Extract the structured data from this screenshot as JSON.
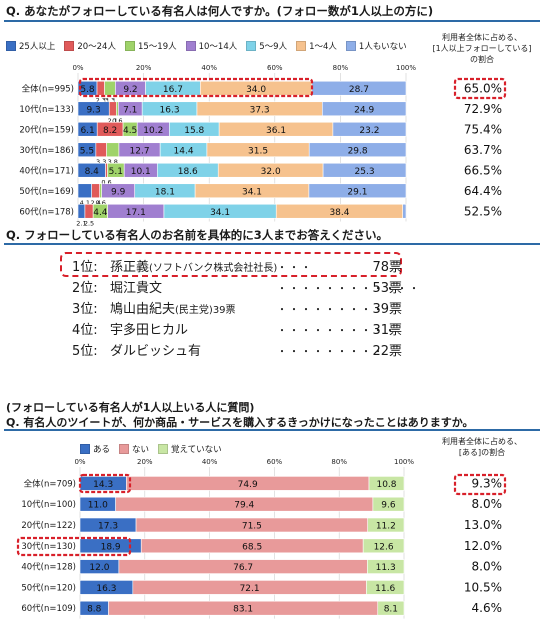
{
  "q1": {
    "title": "Q. あなたがフォローしている有名人は何人ですか。(フォロー数が1人以上の方に)",
    "side_header": [
      "利用者全体に占める、",
      "[1人以上フォローしている]",
      "の割合"
    ]
  },
  "q2": {
    "title": "Q. フォローしている有名人のお名前を具体的に3人までお答えください。",
    "ranking": [
      {
        "rank": "1位:",
        "name": "孫正義",
        "note": "(ソフトバンク株式会社社長)",
        "dots": "・・・",
        "count": "78票"
      },
      {
        "rank": "2位:",
        "name": "堀江貴文",
        "note": "",
        "dots": "・・・・・・・・・・・・",
        "count": "53票"
      },
      {
        "rank": "3位:",
        "name": "鳩山由紀夫",
        "note": "(民主党)39票",
        "dots": "・・・・・・・・・",
        "count": "39票"
      },
      {
        "rank": "4位:",
        "name": "宇多田ヒカル",
        "note": "",
        "dots": "・・・・・・・・・・",
        "count": "31票"
      },
      {
        "rank": "5位:",
        "name": "ダルビッシュ有",
        "note": "",
        "dots": "・・・・・・・・・",
        "count": "22票"
      }
    ]
  },
  "q3": {
    "subtitle": "(フォローしている有名人が1人以上いる人に質問)",
    "title": "Q. 有名人のツイートが、何か商品・サービスを購入するきっかけになったことはありますか。",
    "side_header": [
      "利用者全体に占める、",
      "[ある]の割合"
    ]
  },
  "chart_data": [
    {
      "type": "bar",
      "orientation": "horizontal-stacked-100",
      "categories": [
        "全体(n=995)",
        "10代(n=133)",
        "20代(n=159)",
        "30代(n=186)",
        "40代(n=171)",
        "50代(n=169)",
        "60代(n=178)"
      ],
      "series": [
        {
          "name": "25人以上",
          "color": "#3a6fc4",
          "values": [
            5.8,
            9.3,
            6.1,
            5.5,
            8.4,
            4.1,
            2.1
          ]
        },
        {
          "name": "20～24人",
          "color": "#e05a5a",
          "values": [
            2.3,
            2.1,
            8.2,
            3.3,
            0.6,
            2.4,
            2.5
          ]
        },
        {
          "name": "15～19人",
          "color": "#9fd36a",
          "values": [
            3.3,
            0.6,
            4.5,
            3.8,
            5.1,
            0.6,
            4.4
          ]
        },
        {
          "name": "10～14人",
          "color": "#a07fd0",
          "values": [
            9.2,
            7.1,
            10.2,
            12.7,
            10.1,
            9.9,
            17.1
          ]
        },
        {
          "name": "5～9人",
          "color": "#7fd2e8",
          "values": [
            16.7,
            16.3,
            15.8,
            14.4,
            18.6,
            18.1,
            34.1
          ]
        },
        {
          "name": "1～4人",
          "color": "#f6c28e",
          "values": [
            34.0,
            37.3,
            36.1,
            31.5,
            32.0,
            34.1,
            38.4
          ]
        },
        {
          "name": "1人もいない",
          "color": "#8eaee8",
          "values": [
            28.7,
            24.9,
            23.2,
            29.8,
            25.3,
            29.1,
            1.0
          ]
        }
      ],
      "labels": [
        [
          "5.8",
          "2.3",
          "3.3",
          "9.2",
          "16.7",
          "34.0",
          "28.7"
        ],
        [
          "9.3",
          "2.1",
          "0.6",
          "7.1",
          "16.3",
          "37.3",
          "24.9"
        ],
        [
          "6.1",
          "8.2",
          "4.5",
          "10.2",
          "15.8",
          "36.1",
          "23.2"
        ],
        [
          "5.5",
          "3.3",
          "3.8",
          "12.7",
          "14.4",
          "31.5",
          "29.8"
        ],
        [
          "8.4",
          "0.6",
          "5.1",
          "10.1",
          "18.6",
          "32.0",
          "25.3"
        ],
        [
          "4.1",
          "2.4",
          "0.6",
          "9.9",
          "18.1",
          "34.1",
          "29.1"
        ],
        [
          "2.1",
          "2.5",
          "4.4",
          "17.1",
          "34.1",
          "38.4",
          ""
        ]
      ],
      "xticks": [
        "0%",
        "20%",
        "40%",
        "60%",
        "80%",
        "100%"
      ],
      "side_values": [
        "65.0%",
        "72.9%",
        "75.4%",
        "63.7%",
        "66.5%",
        "64.4%",
        "52.5%"
      ]
    },
    {
      "type": "bar",
      "orientation": "horizontal-stacked-100",
      "categories": [
        "全体(n=709)",
        "10代(n=100)",
        "20代(n=122)",
        "30代(n=130)",
        "40代(n=128)",
        "50代(n=120)",
        "60代(n=109)"
      ],
      "series": [
        {
          "name": "ある",
          "color": "#3a6fc4",
          "values": [
            14.3,
            11.0,
            17.3,
            18.9,
            12.0,
            16.3,
            8.8
          ]
        },
        {
          "name": "ない",
          "color": "#e89a9a",
          "values": [
            74.9,
            79.4,
            71.5,
            68.5,
            76.7,
            72.1,
            83.1
          ]
        },
        {
          "name": "覚えていない",
          "color": "#c8e6a4",
          "values": [
            10.8,
            9.6,
            11.2,
            12.6,
            11.3,
            11.6,
            8.1
          ]
        }
      ],
      "xticks": [
        "0%",
        "20%",
        "40%",
        "60%",
        "80%",
        "100%"
      ],
      "side_values": [
        "9.3%",
        "8.0%",
        "13.0%",
        "12.0%",
        "8.0%",
        "10.5%",
        "4.6%"
      ]
    }
  ]
}
